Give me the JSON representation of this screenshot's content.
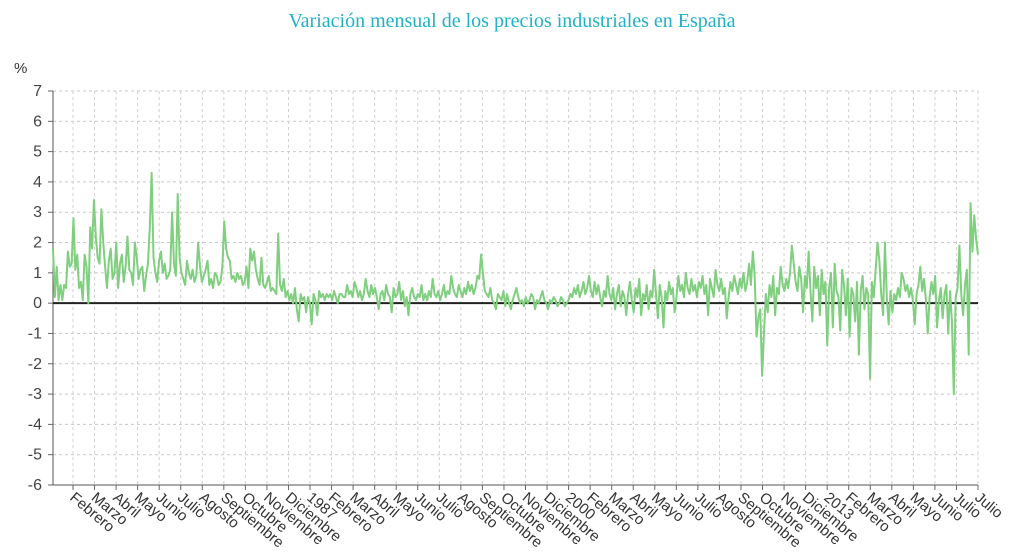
{
  "chart_data": {
    "type": "line",
    "title": "Variación mensual de los precios industriales en España",
    "ylabel": "%",
    "ylim": [
      -6,
      7
    ],
    "yticks": [
      7,
      6,
      5,
      4,
      3,
      2,
      1,
      0,
      -1,
      -2,
      -3,
      -4,
      -5,
      -6
    ],
    "grid": true,
    "line_color": "#7fcf7f",
    "zero_line_color": "#222222",
    "x_start": "1976-02",
    "x_end": "2021-07",
    "x_tick_labels": [
      "Febrero",
      "Marzo",
      "Abril",
      "Mayo",
      "Junio",
      "Julio",
      "Agosto",
      "Septiembre",
      "Octubre",
      "Noviembre",
      "Diciembre",
      "1987",
      "Febrero",
      "Marzo",
      "Abril",
      "Mayo",
      "Junio",
      "Julio",
      "Agosto",
      "Septiembre",
      "Octubre",
      "Noviembre",
      "Diciembre",
      "2000",
      "Febrero",
      "Marzo",
      "Abril",
      "Mayo",
      "Junio",
      "Julio",
      "Agosto",
      "Septiembre",
      "Octubre",
      "Noviembre",
      "Diciembre",
      "2013",
      "Febrero",
      "Marzo",
      "Abril",
      "Mayo",
      "Junio",
      "Julio",
      "Julio"
    ],
    "series": [
      {
        "values": [
          1.8,
          0.2,
          1.2,
          0.1,
          0.6,
          0.1,
          0.6,
          0.5,
          1.7,
          1.2,
          1.3,
          2.8,
          1.1,
          1.6,
          0.5,
          0.7,
          0.1,
          1.6,
          1.2,
          0.0,
          2.5,
          1.8,
          3.4,
          2.2,
          1.5,
          1.3,
          3.1,
          2.0,
          1.2,
          0.5,
          1.4,
          1.8,
          0.8,
          1.0,
          2.0,
          0.5,
          1.3,
          1.6,
          0.7,
          1.2,
          2.2,
          1.1,
          1.0,
          0.6,
          2.0,
          1.5,
          0.8,
          1.1,
          1.2,
          0.4,
          0.9,
          1.3,
          2.5,
          4.3,
          1.5,
          1.0,
          0.7,
          1.4,
          1.7,
          1.0,
          1.3,
          0.8,
          0.9,
          1.1,
          3.0,
          1.3,
          0.9,
          3.6,
          1.5,
          1.0,
          0.8,
          0.6,
          1.4,
          1.0,
          0.8,
          1.1,
          0.7,
          0.9,
          2.0,
          1.2,
          0.7,
          0.9,
          1.1,
          1.4,
          0.6,
          0.8,
          0.5,
          1.0,
          0.9,
          0.6,
          0.7,
          1.2,
          2.7,
          1.8,
          1.5,
          1.4,
          0.8,
          0.9,
          0.7,
          1.0,
          0.8,
          0.9,
          0.6,
          0.7,
          1.2,
          0.5,
          1.8,
          1.4,
          1.7,
          1.1,
          0.8,
          0.6,
          1.5,
          0.6,
          0.5,
          0.7,
          0.9,
          0.4,
          0.5,
          0.4,
          0.3,
          2.3,
          0.6,
          0.4,
          0.8,
          0.2,
          0.4,
          0.1,
          0.3,
          0.0,
          0.5,
          -0.2,
          -0.6,
          0.3,
          0.1,
          0.2,
          -0.3,
          0.2,
          0.0,
          -0.7,
          0.3,
          0.1,
          -0.4,
          0.4,
          0.2,
          0.3,
          0.1,
          0.3,
          0.2,
          0.3,
          0.1,
          0.4,
          0.2,
          0.0,
          0.3,
          0.3,
          0.2,
          0.2,
          0.6,
          0.3,
          0.4,
          0.2,
          0.7,
          0.5,
          0.2,
          0.4,
          0.1,
          0.3,
          0.8,
          0.4,
          0.2,
          0.6,
          0.3,
          0.5,
          0.2,
          -0.2,
          0.3,
          0.4,
          0.1,
          0.6,
          0.3,
          0.2,
          -0.3,
          0.5,
          0.2,
          0.3,
          0.7,
          0.1,
          0.4,
          -0.1,
          0.2,
          -0.4,
          0.3,
          0.5,
          0.2,
          0.1,
          0.3,
          0.2,
          0.6,
          0.1,
          0.3,
          0.1,
          0.4,
          0.2,
          0.8,
          0.3,
          0.2,
          0.4,
          0.1,
          0.3,
          0.6,
          0.2,
          0.4,
          0.3,
          0.9,
          0.5,
          0.3,
          0.2,
          0.6,
          0.4,
          0.2,
          0.5,
          0.3,
          0.7,
          0.4,
          0.6,
          0.3,
          0.5,
          0.9,
          0.8,
          1.6,
          1.0,
          0.4,
          0.3,
          0.2,
          0.5,
          0.1,
          0.0,
          -0.2,
          0.3,
          0.2,
          0.1,
          0.4,
          -0.1,
          0.3,
          0.0,
          -0.2,
          0.1,
          0.3,
          0.5,
          0.2,
          0.0,
          0.1,
          -0.1,
          0.2,
          0.0,
          0.1,
          0.3,
          0.2,
          -0.2,
          0.1,
          0.0,
          0.2,
          0.4,
          0.1,
          0.0,
          -0.2,
          0.1,
          0.0,
          0.2,
          0.1,
          -0.1,
          0.0,
          0.2,
          0.1,
          -0.1,
          0.0,
          0.1,
          0.3,
          0.2,
          0.5,
          0.3,
          0.6,
          0.2,
          0.4,
          0.7,
          0.3,
          0.5,
          0.9,
          0.4,
          0.2,
          0.7,
          0.3,
          0.6,
          0.2,
          -0.1,
          0.4,
          0.2,
          0.9,
          0.3,
          0.1,
          0.5,
          -0.2,
          0.3,
          0.6,
          -0.1,
          0.4,
          0.2,
          -0.4,
          0.3,
          0.7,
          0.1,
          -0.3,
          0.5,
          0.2,
          0.8,
          -0.4,
          0.3,
          0.1,
          0.6,
          -0.2,
          0.4,
          0.2,
          1.1,
          0.3,
          -0.5,
          0.6,
          0.2,
          -0.8,
          0.4,
          0.1,
          0.7,
          0.3,
          0.5,
          -0.3,
          0.2,
          0.9,
          0.4,
          0.6,
          0.2,
          1.0,
          0.5,
          0.3,
          0.8,
          0.4,
          0.6,
          0.2,
          0.7,
          0.5,
          0.9,
          0.3,
          0.6,
          -0.4,
          0.8,
          0.5,
          0.2,
          1.1,
          0.6,
          0.4,
          0.8,
          0.3,
          0.5,
          -0.5,
          0.2,
          0.7,
          0.4,
          0.9,
          0.6,
          0.3,
          0.8,
          0.5,
          1.0,
          0.4,
          0.7,
          1.3,
          0.6,
          1.7,
          0.9,
          -1.1,
          -0.5,
          -0.2,
          -2.4,
          -1.0,
          0.3,
          -0.3,
          0.6,
          0.2,
          0.9,
          -0.4,
          0.5,
          0.3,
          1.2,
          0.6,
          0.4,
          0.8,
          0.5,
          1.0,
          1.9,
          1.3,
          0.7,
          0.4,
          1.2,
          0.8,
          -0.3,
          0.9,
          0.5,
          1.7,
          0.4,
          -0.6,
          1.2,
          0.5,
          0.9,
          -0.4,
          1.1,
          0.3,
          0.7,
          -1.4,
          0.5,
          1.0,
          -0.8,
          1.3,
          0.4,
          0.2,
          -0.9,
          1.1,
          0.6,
          -0.4,
          0.8,
          -1.1,
          0.5,
          0.3,
          -0.6,
          0.7,
          -1.7,
          0.4,
          0.9,
          -0.2,
          0.5,
          0.3,
          -2.5,
          0.7,
          0.2,
          1.1,
          2.0,
          1.4,
          0.3,
          -0.4,
          2.0,
          0.2,
          -0.7,
          0.4,
          -0.3,
          0.3,
          0.1,
          0.5,
          0.2,
          1.0,
          0.8,
          0.4,
          0.6,
          0.2,
          0.5,
          0.1,
          -0.7,
          0.3,
          0.6,
          1.2,
          0.4,
          0.8,
          0.1,
          -1.0,
          0.2,
          0.7,
          0.3,
          0.9,
          -0.8,
          0.1,
          0.5,
          -0.5,
          0.3,
          0.6,
          -1.0,
          0.4,
          -0.6,
          -3.0,
          0.2,
          0.5,
          1.9,
          0.3,
          -0.4,
          0.6,
          1.1,
          -1.7,
          3.3,
          1.7,
          2.9,
          2.1,
          1.6
        ]
      }
    ]
  }
}
